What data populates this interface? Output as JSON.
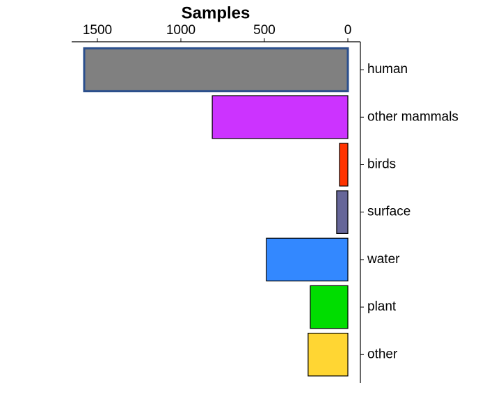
{
  "chart_data": {
    "type": "barh",
    "title": "Samples",
    "categories": [
      "human",
      "other mammals",
      "birds",
      "surface",
      "water",
      "plant",
      "other"
    ],
    "values": [
      1579,
      812,
      50,
      67,
      488,
      225,
      238
    ],
    "colors": [
      "#808080",
      "#cc33ff",
      "#ff3300",
      "#666699",
      "#3388ff",
      "#00dd00",
      "#ffd633"
    ],
    "edge_colors": [
      "#2b4f8c",
      "#000000",
      "#000000",
      "#000000",
      "#000000",
      "#000000",
      "#000000"
    ],
    "xlim": [
      1654,
      -75
    ],
    "xticks": [
      1500,
      1000,
      500,
      0
    ],
    "x_axis_position": "top",
    "y_axis_position": "right"
  }
}
